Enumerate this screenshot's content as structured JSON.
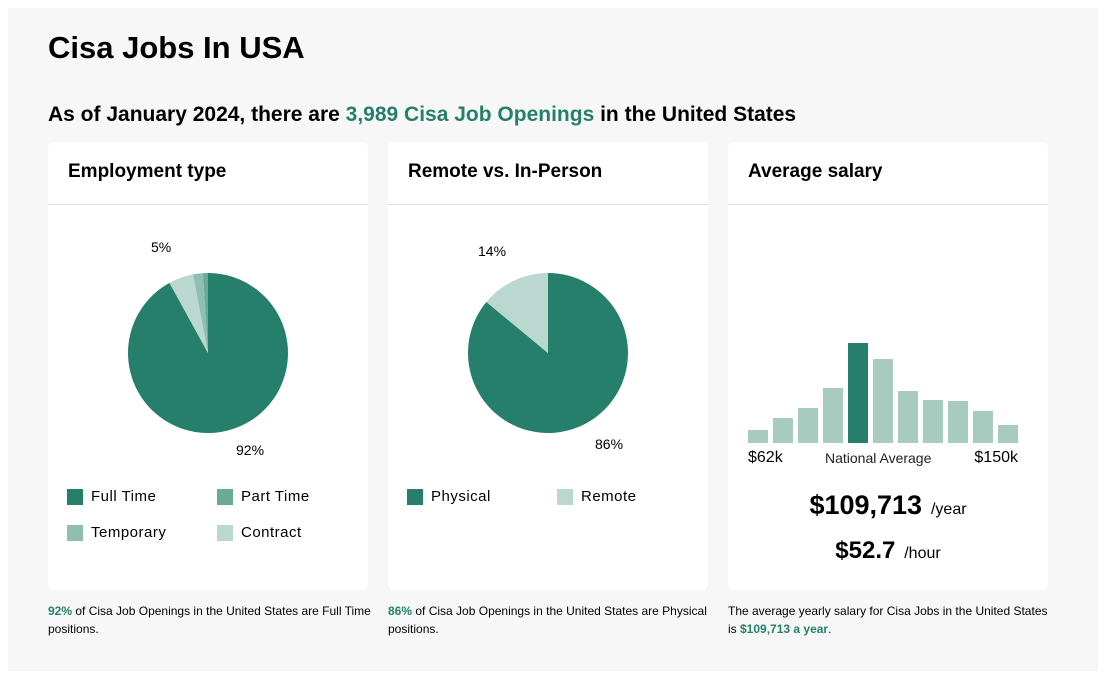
{
  "title": "Cisa Jobs In USA",
  "subtitle": {
    "prefix": "As of January 2024, there are ",
    "highlight": "3,989 Cisa Job Openings",
    "suffix": " in the United States"
  },
  "colors": {
    "accent": "#267f6a",
    "part_time": "#6aab98",
    "temporary": "#8fbfb0",
    "contract": "#bad8cf",
    "bar": "#a8cbc0"
  },
  "employment": {
    "heading": "Employment type",
    "chart_data": {
      "type": "pie",
      "slices": [
        {
          "label": "Full Time",
          "value": 92
        },
        {
          "label": "Contract",
          "value": 5
        },
        {
          "label": "Temporary",
          "value": 2
        },
        {
          "label": "Part Time",
          "value": 1
        }
      ]
    },
    "label_major": "92%",
    "label_minor": "5%",
    "legend": [
      "Full Time",
      "Part Time",
      "Temporary",
      "Contract"
    ],
    "foot_pct": "92%",
    "foot_text": " of Cisa Job Openings in the United States are Full Time positions."
  },
  "remote": {
    "heading": "Remote vs. In-Person",
    "chart_data": {
      "type": "pie",
      "slices": [
        {
          "label": "Physical",
          "value": 86
        },
        {
          "label": "Remote",
          "value": 14
        }
      ]
    },
    "label_major": "86%",
    "label_minor": "14%",
    "legend": [
      "Physical",
      "Remote"
    ],
    "foot_pct": "86%",
    "foot_text": " of Cisa Job Openings in the United States are Physical positions."
  },
  "salary": {
    "heading": "Average salary",
    "chart_data": {
      "type": "bar",
      "values": [
        13,
        25,
        35,
        55,
        100,
        84,
        52,
        43,
        42,
        32,
        18
      ],
      "highlight_index": 4
    },
    "min_label": "$62k",
    "mid_label": "National Average",
    "max_label": "$150k",
    "yearly": "$109,713",
    "yearly_unit": "/year",
    "hourly": "$52.7",
    "hourly_unit": "/hour",
    "foot_text": "The average yearly salary for Cisa Jobs in the United States is ",
    "foot_value": "$109,713 a year",
    "foot_end": "."
  }
}
